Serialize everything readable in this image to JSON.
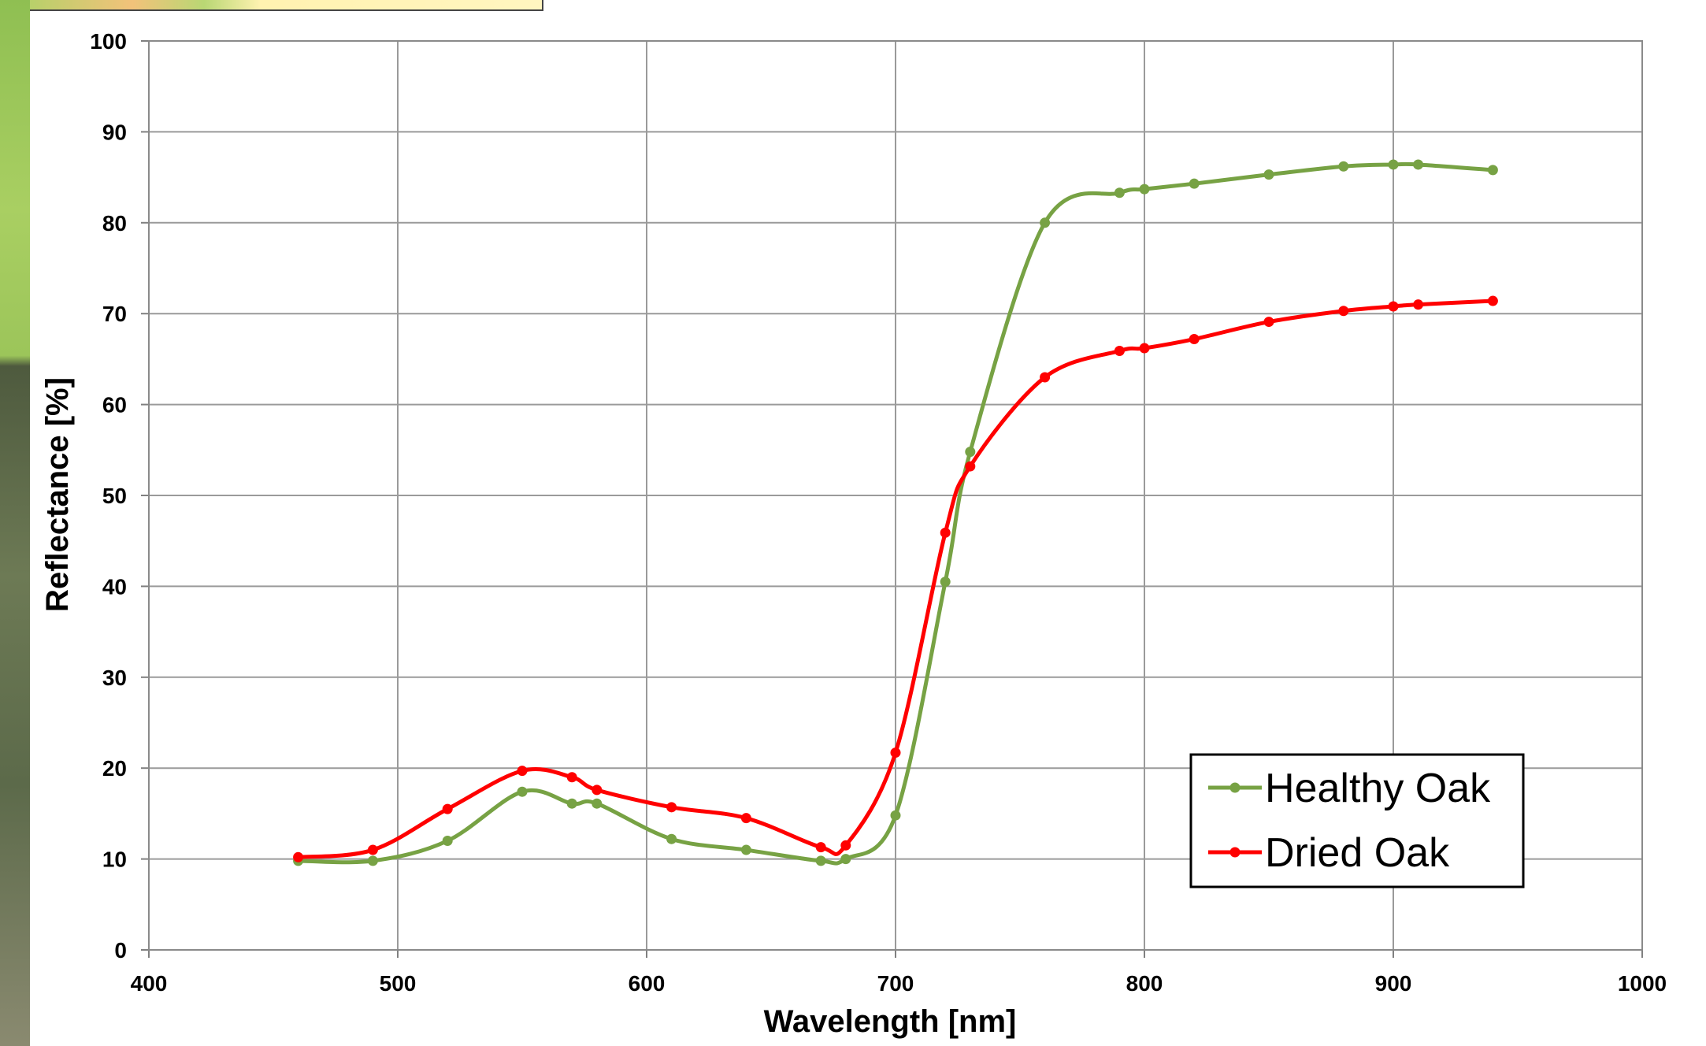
{
  "chart_data": {
    "type": "line",
    "title": "",
    "xlabel": "Wavelength [nm]",
    "ylabel": "Reflectance [%]",
    "xlim": [
      400,
      1000
    ],
    "ylim": [
      0,
      100
    ],
    "x_ticks": [
      "400",
      "500",
      "600",
      "700",
      "800",
      "900",
      "1000"
    ],
    "y_ticks": [
      "0",
      "10",
      "20",
      "30",
      "40",
      "50",
      "60",
      "70",
      "80",
      "90",
      "100"
    ],
    "grid": true,
    "legend_position": "bottom-right",
    "series": [
      {
        "name": "Healthy Oak",
        "color": "#77a244",
        "x": [
          460,
          490,
          520,
          550,
          570,
          580,
          610,
          640,
          670,
          680,
          700,
          720,
          730,
          760,
          790,
          800,
          820,
          850,
          880,
          900,
          910,
          940
        ],
        "y": [
          9.8,
          9.8,
          12,
          17.4,
          16.1,
          16.1,
          12.2,
          11,
          9.8,
          10,
          14.8,
          40.5,
          54.8,
          80,
          83.3,
          83.7,
          84.3,
          85.3,
          86.2,
          86.4,
          86.4,
          85.8
        ]
      },
      {
        "name": "Dried Oak",
        "color": "#ff0000",
        "x": [
          460,
          490,
          520,
          550,
          570,
          580,
          610,
          640,
          670,
          680,
          700,
          720,
          730,
          760,
          790,
          800,
          820,
          850,
          880,
          900,
          910,
          940
        ],
        "y": [
          10.2,
          11,
          15.5,
          19.7,
          19,
          17.6,
          15.7,
          14.5,
          11.3,
          11.5,
          21.7,
          45.9,
          53.2,
          63,
          65.9,
          66.2,
          67.2,
          69.1,
          70.3,
          70.8,
          71,
          71.4
        ]
      }
    ]
  }
}
